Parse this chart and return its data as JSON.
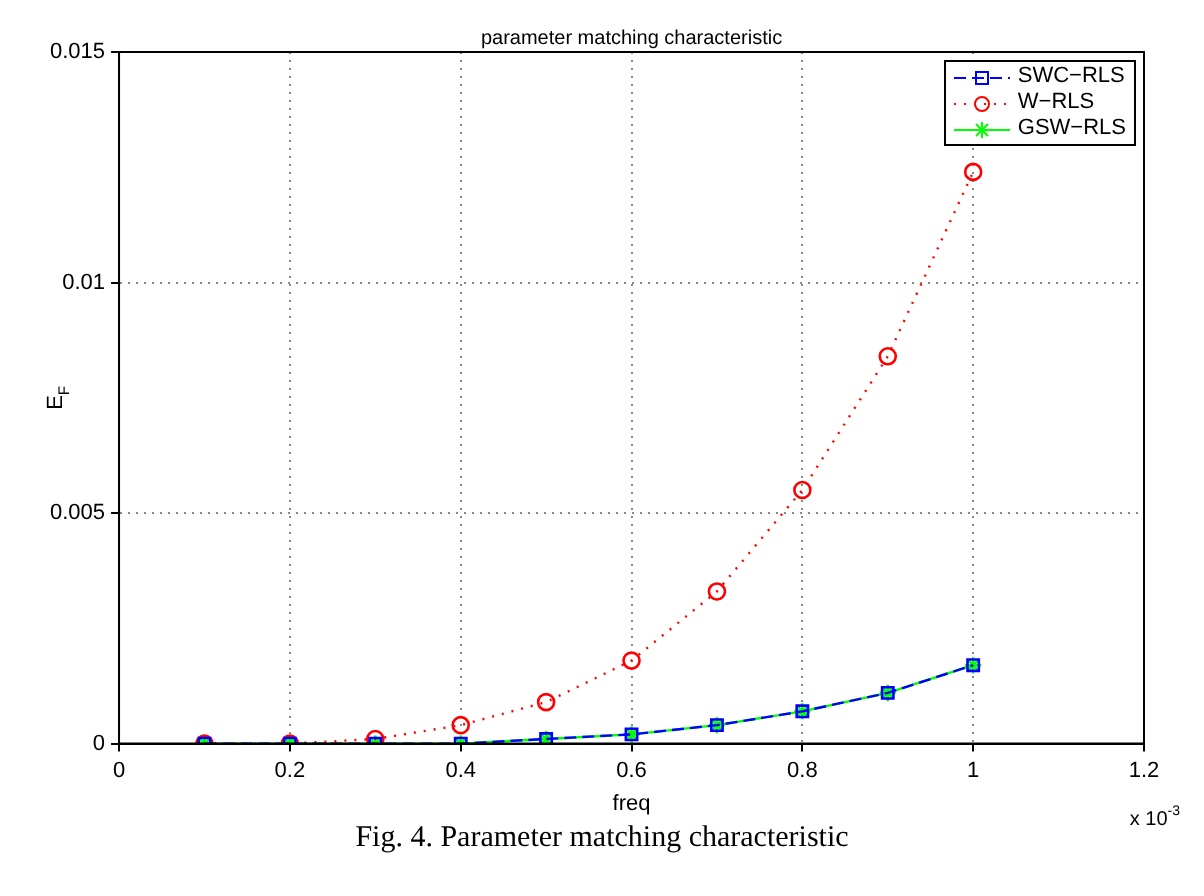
{
  "chart_data": {
    "type": "line",
    "title": "parameter matching characteristic",
    "xlabel": "freq",
    "ylabel": "E$_{F}$",
    "x": [
      0.1,
      0.2,
      0.3,
      0.4,
      0.5,
      0.6,
      0.7,
      0.8,
      0.9,
      1.0
    ],
    "series": [
      {
        "name": "SWC−RLS",
        "color": "#0000ff",
        "marker": "square",
        "line_style": "dashed",
        "values": [
          0,
          0,
          0,
          0,
          0.0001,
          0.0002,
          0.0004,
          0.0007,
          0.0011,
          0.0017
        ]
      },
      {
        "name": "W−RLS",
        "color": "#ff0000",
        "marker": "circle",
        "line_style": "dotted",
        "values": [
          0,
          0,
          0.0001,
          0.0004,
          0.0009,
          0.0018,
          0.0033,
          0.0055,
          0.0084,
          0.0124
        ]
      },
      {
        "name": "GSW−RLS",
        "color": "#00ff00",
        "marker": "cross",
        "line_style": "solid",
        "values": [
          0,
          0,
          0,
          0,
          0.0001,
          0.0002,
          0.0004,
          0.0007,
          0.0011,
          0.0017
        ]
      }
    ],
    "xlim": [
      0,
      1.2
    ],
    "xticks": [
      0,
      0.2,
      0.4,
      0.6,
      0.8,
      1,
      1.2
    ],
    "ylim": [
      0,
      0.015
    ],
    "yticks": [
      0,
      0.005,
      0.01,
      0.015
    ],
    "grid": true,
    "legend": "top right",
    "annotations": [
      "x 10$^{-3}$",
      "Fig. 4. Parameter matching characteristic"
    ]
  }
}
